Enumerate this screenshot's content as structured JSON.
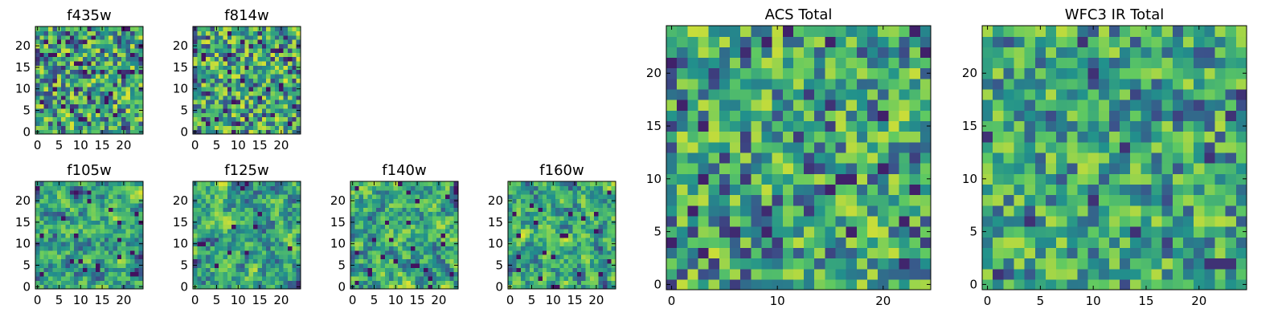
{
  "colormap": {
    "name": "viridis",
    "stops": [
      "#440154",
      "#3b528b",
      "#21918c",
      "#5ec962",
      "#fde725"
    ]
  },
  "chart_data": [
    {
      "type": "heatmap",
      "title": "f435w",
      "xlabel": "",
      "ylabel": "",
      "xlim": [
        0,
        24
      ],
      "ylim": [
        0,
        24
      ],
      "grid_size": [
        25,
        25
      ],
      "xticks": [
        0,
        5,
        10,
        15,
        20
      ],
      "yticks": [
        0,
        5,
        10,
        15,
        20
      ],
      "pattern": {
        "seed": 11,
        "smooth": 0.0,
        "lo": 0.05,
        "hi": 0.95
      },
      "values": []
    },
    {
      "type": "heatmap",
      "title": "f814w",
      "xlabel": "",
      "ylabel": "",
      "xlim": [
        0,
        24
      ],
      "ylim": [
        0,
        24
      ],
      "grid_size": [
        25,
        25
      ],
      "xticks": [
        0,
        5,
        10,
        15,
        20
      ],
      "yticks": [
        0,
        5,
        10,
        15,
        20
      ],
      "pattern": {
        "seed": 23,
        "smooth": 0.0,
        "lo": 0.05,
        "hi": 0.95
      },
      "values": []
    },
    {
      "type": "heatmap",
      "title": "f105w",
      "xlabel": "",
      "ylabel": "",
      "xlim": [
        0,
        24
      ],
      "ylim": [
        0,
        24
      ],
      "grid_size": [
        25,
        25
      ],
      "xticks": [
        0,
        5,
        10,
        15,
        20
      ],
      "yticks": [
        0,
        5,
        10,
        15,
        20
      ],
      "pattern": {
        "seed": 37,
        "smooth": 0.6,
        "lo": 0.05,
        "hi": 0.95
      },
      "values": []
    },
    {
      "type": "heatmap",
      "title": "f125w",
      "xlabel": "",
      "ylabel": "",
      "xlim": [
        0,
        24
      ],
      "ylim": [
        0,
        24
      ],
      "grid_size": [
        25,
        25
      ],
      "xticks": [
        0,
        5,
        10,
        15,
        20
      ],
      "yticks": [
        0,
        5,
        10,
        15,
        20
      ],
      "pattern": {
        "seed": 41,
        "smooth": 0.6,
        "lo": 0.05,
        "hi": 0.95
      },
      "values": []
    },
    {
      "type": "heatmap",
      "title": "f140w",
      "xlabel": "",
      "ylabel": "",
      "xlim": [
        0,
        24
      ],
      "ylim": [
        0,
        24
      ],
      "grid_size": [
        25,
        25
      ],
      "xticks": [
        0,
        5,
        10,
        15,
        20
      ],
      "yticks": [
        0,
        5,
        10,
        15,
        20
      ],
      "pattern": {
        "seed": 53,
        "smooth": 0.6,
        "lo": 0.05,
        "hi": 0.95
      },
      "values": []
    },
    {
      "type": "heatmap",
      "title": "f160w",
      "xlabel": "",
      "ylabel": "",
      "xlim": [
        0,
        24
      ],
      "ylim": [
        0,
        24
      ],
      "grid_size": [
        25,
        25
      ],
      "xticks": [
        0,
        5,
        10,
        15,
        20
      ],
      "yticks": [
        0,
        5,
        10,
        15,
        20
      ],
      "pattern": {
        "seed": 67,
        "smooth": 0.6,
        "lo": 0.05,
        "hi": 0.95
      },
      "values": []
    },
    {
      "type": "heatmap",
      "title": "ACS Total",
      "xlabel": "",
      "ylabel": "",
      "xlim": [
        0,
        24
      ],
      "ylim": [
        0,
        24
      ],
      "grid_size": [
        25,
        25
      ],
      "xticks": [
        0,
        10,
        20
      ],
      "yticks": [
        0,
        5,
        10,
        15,
        20
      ],
      "pattern": {
        "seed": 79,
        "smooth": 0.15,
        "lo": 0.1,
        "hi": 0.92
      },
      "values": []
    },
    {
      "type": "heatmap",
      "title": "WFC3 IR Total",
      "xlabel": "",
      "ylabel": "",
      "xlim": [
        0,
        24
      ],
      "ylim": [
        0,
        24
      ],
      "grid_size": [
        25,
        25
      ],
      "xticks": [
        0,
        5,
        10,
        15,
        20
      ],
      "yticks": [
        0,
        5,
        10,
        15,
        20
      ],
      "pattern": {
        "seed": 97,
        "smooth": 0.2,
        "lo": 0.15,
        "hi": 0.9
      },
      "values": []
    }
  ]
}
